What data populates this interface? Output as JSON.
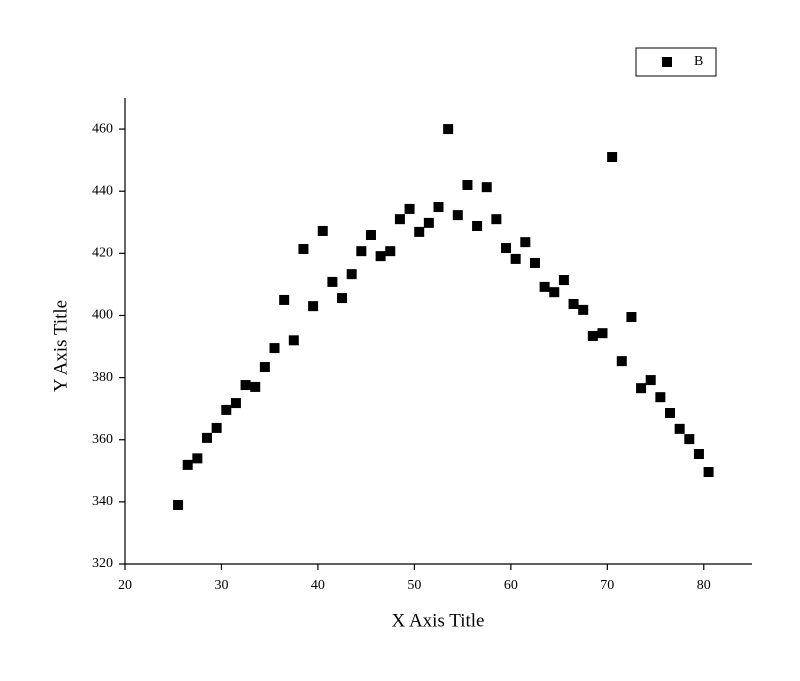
{
  "chart_data": {
    "type": "scatter",
    "x_label": "X Axis Title",
    "y_label": "Y Axis Title",
    "xlim": [
      20,
      85
    ],
    "ylim": [
      320,
      470
    ],
    "xticks": [
      20,
      30,
      40,
      50,
      60,
      70,
      80
    ],
    "yticks": [
      320,
      340,
      360,
      380,
      400,
      420,
      440,
      460
    ],
    "legend_position": "upper right",
    "series": [
      {
        "name": "B",
        "color": "#000000",
        "x": [
          25.5,
          26.5,
          27.5,
          28.5,
          29.5,
          30.5,
          31.5,
          32.5,
          33.5,
          34.5,
          35.5,
          36.5,
          37.5,
          38.5,
          39.5,
          40.5,
          41.5,
          42.5,
          43.5,
          44.5,
          45.5,
          46.5,
          47.5,
          48.5,
          49.5,
          50.5,
          51.5,
          52.5,
          53.5,
          54.5,
          55.5,
          56.5,
          57.5,
          58.5,
          59.5,
          60.5,
          61.5,
          62.5,
          63.5,
          64.5,
          65.5,
          66.5,
          67.5,
          68.5,
          69.5,
          70.5,
          71.5,
          72.5,
          73.5,
          74.5,
          75.5,
          76.5,
          77.5,
          78.5,
          79.5,
          80.5
        ],
        "values": [
          339,
          351.9,
          354,
          360.6,
          363.8,
          369.6,
          371.8,
          377.6,
          377,
          383.4,
          389.5,
          405,
          392,
          421.4,
          403,
          427.2,
          410.8,
          405.6,
          413.3,
          420.7,
          425.9,
          419.1,
          420.7,
          431,
          434.3,
          426.9,
          429.8,
          434.9,
          460,
          432.3,
          442,
          428.8,
          441.3,
          431,
          421.7,
          418.2,
          423.6,
          416.9,
          409.2,
          407.5,
          411.4,
          403.7,
          401.8,
          393.4,
          394.3,
          451,
          385.3,
          399.5,
          376.6,
          379.2,
          373.7,
          368.6,
          363.5,
          360.2,
          355.4,
          349.6
        ]
      }
    ]
  }
}
